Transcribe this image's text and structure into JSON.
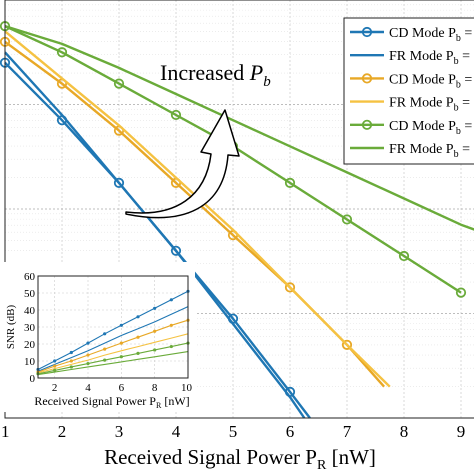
{
  "chart_data": [
    {
      "type": "line",
      "xlabel": "Received Signal Power P",
      "xlabel_sub": "R",
      "xlabel_unit": " [nW]",
      "xlim": [
        1,
        9.25
      ],
      "xticks": [
        1,
        2,
        3,
        4,
        5,
        6,
        7,
        8,
        9
      ],
      "ylog": true,
      "grid": true,
      "annotation": {
        "main": "Increased ",
        "var": "P",
        "sub": "b"
      },
      "legend": {
        "placement": "top-right",
        "entries": [
          {
            "label": "CD Mode P",
            "sub": "b",
            "suffix": " =",
            "color": "#1f77b4",
            "marker": "circle"
          },
          {
            "label": "FR Mode P",
            "sub": "b",
            "suffix": " =",
            "color": "#1f77b4",
            "marker": "none"
          },
          {
            "label": "CD Mode P",
            "sub": "b",
            "suffix": " =",
            "color": "#e8a826",
            "marker": "circle"
          },
          {
            "label": "FR Mode P",
            "sub": "b",
            "suffix": " =",
            "color": "#f5c242",
            "marker": "none"
          },
          {
            "label": "CD Mode P",
            "sub": "b",
            "suffix": " =",
            "color": "#6aab3a",
            "marker": "circle"
          },
          {
            "label": "FR Mode P",
            "sub": "b",
            "suffix": " =",
            "color": "#6aab3a",
            "marker": "none"
          }
        ]
      },
      "series": [
        {
          "color": "#1f77b4",
          "marker": "circle",
          "x": [
            1,
            2,
            3,
            4,
            5,
            6,
            6.35
          ],
          "y": [
            -0.6,
            -1.15,
            -1.75,
            -2.4,
            -3.05,
            -3.75,
            -4.0
          ]
        },
        {
          "color": "#1f77b4",
          "marker": "none",
          "x": [
            1,
            2,
            3,
            4,
            5,
            6,
            6.25
          ],
          "y": [
            -0.5,
            -1.1,
            -1.75,
            -2.4,
            -3.1,
            -3.8,
            -4.0
          ]
        },
        {
          "color": "#e8a826",
          "marker": "circle",
          "x": [
            1,
            2,
            3,
            4,
            5,
            6,
            7,
            7.65
          ],
          "y": [
            -0.4,
            -0.8,
            -1.25,
            -1.75,
            -2.25,
            -2.75,
            -3.3,
            -3.7
          ]
        },
        {
          "color": "#f5c242",
          "marker": "none",
          "x": [
            1,
            2,
            3,
            4,
            5,
            6,
            7,
            7.75
          ],
          "y": [
            -0.3,
            -0.75,
            -1.2,
            -1.7,
            -2.2,
            -2.75,
            -3.3,
            -3.7
          ]
        },
        {
          "color": "#6aab3a",
          "marker": "circle",
          "x": [
            1,
            2,
            3,
            4,
            5,
            6,
            7,
            8,
            9
          ],
          "y": [
            -0.25,
            -0.5,
            -0.8,
            -1.1,
            -1.4,
            -1.75,
            -2.1,
            -2.45,
            -2.8
          ]
        },
        {
          "color": "#6aab3a",
          "marker": "none",
          "x": [
            1,
            2,
            3,
            4,
            5,
            6,
            7,
            8,
            9,
            9.25
          ],
          "y": [
            -0.25,
            -0.42,
            -0.65,
            -0.9,
            -1.15,
            -1.4,
            -1.65,
            -1.9,
            -2.15,
            -2.2
          ]
        }
      ]
    },
    {
      "type": "line",
      "inset": true,
      "ylabel": "SNR (dB)",
      "xlabel": "Received Signal Power P",
      "xlabel_sub": "R",
      "xlabel_unit": " [nW]",
      "xlim": [
        1,
        10
      ],
      "ylim": [
        0,
        60
      ],
      "xticks": [
        2,
        4,
        6,
        8,
        10
      ],
      "yticks": [
        0,
        10,
        20,
        30,
        40,
        50,
        60
      ],
      "grid": true,
      "series": [
        {
          "color": "#1f77b4",
          "marker": "circle",
          "x": [
            1,
            2,
            3,
            4,
            5,
            6,
            7,
            8,
            9,
            10
          ],
          "y": [
            5,
            10,
            15,
            20.5,
            26,
            31,
            36,
            41,
            46,
            51
          ]
        },
        {
          "color": "#1f77b4",
          "marker": "none",
          "x": [
            1,
            2,
            3,
            4,
            5,
            6,
            7,
            8,
            9,
            10
          ],
          "y": [
            4,
            8,
            12,
            16,
            20.5,
            25,
            29,
            33,
            37.5,
            42
          ]
        },
        {
          "color": "#e8a826",
          "marker": "circle",
          "x": [
            1,
            2,
            3,
            4,
            5,
            6,
            7,
            8,
            9,
            10
          ],
          "y": [
            3.5,
            7,
            10,
            13.5,
            17,
            20.5,
            24,
            27.5,
            31,
            34
          ]
        },
        {
          "color": "#f5c242",
          "marker": "none",
          "x": [
            1,
            2,
            3,
            4,
            5,
            6,
            7,
            8,
            9,
            10
          ],
          "y": [
            3,
            5.5,
            8,
            10.5,
            13.5,
            16,
            18.5,
            21,
            23.5,
            26
          ]
        },
        {
          "color": "#6aab3a",
          "marker": "circle",
          "x": [
            1,
            2,
            3,
            4,
            5,
            6,
            7,
            8,
            9,
            10
          ],
          "y": [
            2.5,
            4.5,
            6.5,
            8.5,
            10.5,
            12.5,
            14.5,
            16.5,
            18.5,
            20.5
          ]
        },
        {
          "color": "#6aab3a",
          "marker": "none",
          "x": [
            1,
            2,
            3,
            4,
            5,
            6,
            7,
            8,
            9,
            10
          ],
          "y": [
            2,
            3.5,
            5,
            6.5,
            8,
            9.5,
            11,
            12.5,
            14,
            15.5
          ]
        }
      ]
    }
  ]
}
